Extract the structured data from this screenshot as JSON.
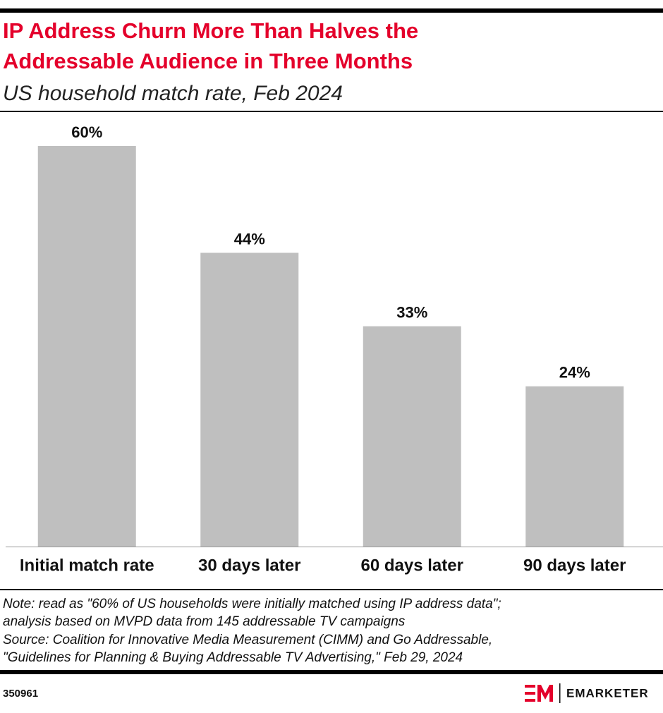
{
  "chart_data": {
    "type": "bar",
    "title": [
      "IP Address Churn More Than Halves the",
      "Addressable Audience in Three Months"
    ],
    "subtitle": "US household match rate, Feb 2024",
    "categories": [
      "Initial match rate",
      "30 days later",
      "60 days later",
      "90 days later"
    ],
    "values": [
      60,
      44,
      33,
      24
    ],
    "value_labels": [
      "60%",
      "44%",
      "33%",
      "24%"
    ],
    "color": "#bfbfbf"
  },
  "footer": {
    "note": [
      "Note: read as \"60% of US households were initially matched using IP address data\";",
      "analysis based on MVPD data from 145 addressable TV campaigns"
    ],
    "source": [
      "Source: Coalition for Innovative Media Measurement (CIMM) and Go Addressable,",
      "\"Guidelines for Planning & Buying Addressable TV Advertising,\" Feb 29, 2024"
    ],
    "id": "350961",
    "brand": "EMARKETER"
  }
}
